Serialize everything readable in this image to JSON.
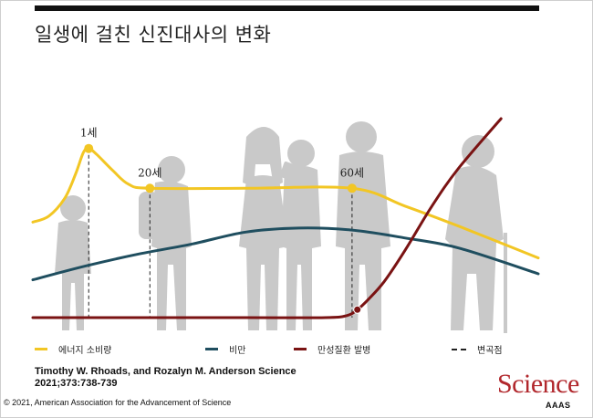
{
  "title": "일생에 걸친 신진대사의 변화",
  "chart_data": {
    "type": "line",
    "title": "일생에 걸친 신진대사의 변화",
    "x_range": [
      0,
      95
    ],
    "y_range": [
      0,
      100
    ],
    "grid": false,
    "series": [
      {
        "name": "에너지 소비량",
        "color": "#f2c624",
        "points": [
          [
            0,
            48
          ],
          [
            3,
            51
          ],
          [
            6,
            60
          ],
          [
            8,
            72
          ],
          [
            9.5,
            83
          ],
          [
            10.5,
            85
          ],
          [
            12,
            82
          ],
          [
            15,
            74
          ],
          [
            18,
            67
          ],
          [
            22,
            65
          ],
          [
            40,
            65
          ],
          [
            60,
            65
          ],
          [
            70,
            56
          ],
          [
            80,
            46
          ],
          [
            95,
            30
          ]
        ]
      },
      {
        "name": "비만",
        "color": "#1f4e5f",
        "points": [
          [
            0,
            19
          ],
          [
            10,
            26
          ],
          [
            20,
            32
          ],
          [
            30,
            37
          ],
          [
            40,
            43
          ],
          [
            50,
            45
          ],
          [
            60,
            44
          ],
          [
            70,
            40
          ],
          [
            80,
            35
          ],
          [
            95,
            22
          ]
        ]
      },
      {
        "name": "만성질환 발병",
        "color": "#7a1313",
        "points": [
          [
            0,
            0
          ],
          [
            40,
            0
          ],
          [
            55,
            0
          ],
          [
            59,
            1
          ],
          [
            61,
            4
          ],
          [
            63,
            9
          ],
          [
            66,
            18
          ],
          [
            70,
            34
          ],
          [
            75,
            56
          ],
          [
            80,
            75
          ],
          [
            88,
            100
          ]
        ]
      }
    ],
    "turning_points": [
      {
        "label": "1세",
        "x": 10.5,
        "y": 85
      },
      {
        "label": "20세",
        "x": 22,
        "y": 65
      },
      {
        "label": "60세",
        "x": 60,
        "y": 65
      },
      {
        "label": "",
        "x": 61,
        "y": 4
      }
    ],
    "legend_position": "bottom"
  },
  "legend": [
    {
      "label": "에너지 소비량",
      "color": "#f2c624",
      "style": "solid"
    },
    {
      "label": "비만",
      "color": "#1f4e5f",
      "style": "solid"
    },
    {
      "label": "만성질환 발병",
      "color": "#7a1313",
      "style": "solid"
    },
    {
      "label": "변곡점",
      "color": "#222222",
      "style": "dashed"
    }
  ],
  "citation": {
    "line1": "Timothy W. Rhoads, and Rozalyn M. Anderson Science",
    "line2": "2021;373:738-739"
  },
  "copyright": "© 2021, American Association for the Advancement of Science",
  "logo": {
    "name": "Science",
    "sub": "AAAS"
  },
  "colors": {
    "silhouette": "#c9c9c9",
    "turning_point": "#f2c624"
  }
}
